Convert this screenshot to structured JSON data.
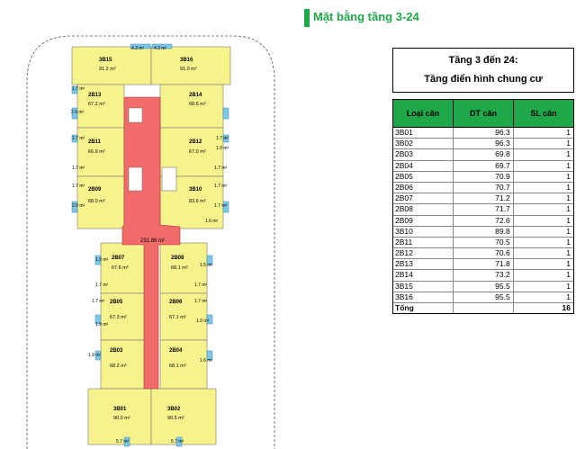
{
  "page": {
    "title": "Mặt bằng tầng 3-24"
  },
  "plan": {
    "corridor_area": "231.86 m²",
    "apartments": [
      {
        "id": "3B15",
        "area": "91.2 m²"
      },
      {
        "id": "3B16",
        "area": "91.0 m²"
      },
      {
        "id": "2B13",
        "area": "67.2 m²"
      },
      {
        "id": "2B14",
        "area": "68.6 m²"
      },
      {
        "id": "2B11",
        "area": "66.9 m²"
      },
      {
        "id": "2B12",
        "area": "67.0 m²"
      },
      {
        "id": "2B09",
        "area": "68.0 m²"
      },
      {
        "id": "3B10",
        "area": "83.6 m²"
      },
      {
        "id": "2B07",
        "area": "67.6 m²"
      },
      {
        "id": "2B08",
        "area": "68.1 m²"
      },
      {
        "id": "2B05",
        "area": "67.3 m²"
      },
      {
        "id": "2B06",
        "area": "67.1 m²"
      },
      {
        "id": "2B03",
        "area": "68.2 m²"
      },
      {
        "id": "2B04",
        "area": "68.1 m²"
      },
      {
        "id": "3B01",
        "area": "90.0 m²"
      },
      {
        "id": "3B02",
        "area": "90.5 m²"
      }
    ],
    "balconies": {
      "top_left": "4.3 m²",
      "top_right": "4.3 m²",
      "b1": "1.7 m²",
      "b2": "2.9 m²",
      "b3": "1.7 m²",
      "b4": "1.7 m²",
      "b5": "1.7 m²",
      "b6": "2.9 m²",
      "b7": "1.9 m²",
      "b8": "1.7 m²",
      "b9": "1.7 m²",
      "b10": "1.7 m²",
      "b11": "1.7 m²",
      "b12": "1.6 m²",
      "m1": "1.9 m²",
      "m2": "1.7 m²",
      "m3": "1.7 m²",
      "m4": "1.9 m²",
      "m5": "1.9 m²",
      "m6": "1.5 m²",
      "m7": "1.7 m²",
      "m8": "1.7 m²",
      "m9": "1.9 m²",
      "m10": "1.6 m²",
      "bot_left": "5.7 m²",
      "bot_right": "5.7 m²"
    }
  },
  "table": {
    "header_line1": "Tầng 3 đến 24:",
    "header_line2": "Tầng điển hình chung cư",
    "col1": "Loại căn",
    "col2": "DT căn",
    "col3": "SL căn",
    "rows": [
      {
        "type": "3B01",
        "area": "96.3",
        "qty": "1"
      },
      {
        "type": "3B02",
        "area": "96.3",
        "qty": "1"
      },
      {
        "type": "2B03",
        "area": "69.8",
        "qty": "1"
      },
      {
        "type": "2B04",
        "area": "69.7",
        "qty": "1"
      },
      {
        "type": "2B05",
        "area": "70.9",
        "qty": "1"
      },
      {
        "type": "2B06",
        "area": "70.7",
        "qty": "1"
      },
      {
        "type": "2B07",
        "area": "71.2",
        "qty": "1"
      },
      {
        "type": "2B08",
        "area": "71.7",
        "qty": "1"
      },
      {
        "type": "2B09",
        "area": "72.6",
        "qty": "1"
      },
      {
        "type": "3B10",
        "area": "89.8",
        "qty": "1"
      },
      {
        "type": "2B11",
        "area": "70.5",
        "qty": "1"
      },
      {
        "type": "2B12",
        "area": "70.6",
        "qty": "1"
      },
      {
        "type": "2B13",
        "area": "71.8",
        "qty": "1"
      },
      {
        "type": "2B14",
        "area": "73.2",
        "qty": "1"
      },
      {
        "type": "3B15",
        "area": "95.5",
        "qty": "1"
      },
      {
        "type": "3B16",
        "area": "95.5",
        "qty": "1"
      }
    ],
    "total_label": "Tổng",
    "total_qty": "16"
  },
  "colors": {
    "accent": "#1fa84a",
    "apartment": "#f7f38c",
    "corridor": "#f26b6b",
    "balcony": "#7fc6e6"
  }
}
